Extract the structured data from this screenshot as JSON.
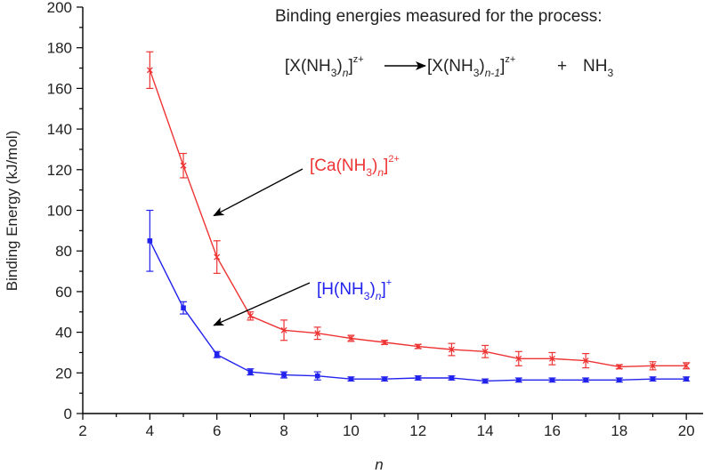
{
  "chart_data": {
    "type": "line",
    "ylabel": "Binding Energy (kJ/mol)",
    "xlabel": "n",
    "xlim": [
      2,
      20.5
    ],
    "ylim": [
      0,
      200
    ],
    "x_ticks": [
      "2",
      "4",
      "6",
      "8",
      "10",
      "12",
      "14",
      "16",
      "18",
      "20"
    ],
    "y_ticks": [
      "0",
      "20",
      "40",
      "60",
      "80",
      "100",
      "120",
      "140",
      "160",
      "180",
      "200"
    ],
    "series": [
      {
        "name": "[Ca(NH3)n]2+",
        "color": "#ee3333",
        "marker": "x",
        "x": [
          4,
          5,
          6,
          7,
          8,
          9,
          10,
          11,
          12,
          13,
          14,
          15,
          16,
          17,
          18,
          19,
          20
        ],
        "values": [
          169,
          122,
          77,
          48,
          41,
          39.5,
          37,
          35,
          33,
          31.5,
          30.5,
          27,
          27,
          26,
          23,
          23.5,
          23.5
        ],
        "errors": [
          9,
          6,
          8,
          2,
          5,
          3,
          1.5,
          1,
          1,
          3,
          3,
          3.5,
          3,
          3.5,
          1,
          2,
          1.5
        ]
      },
      {
        "name": "[H(NH3)n]+",
        "color": "#2222ee",
        "marker": "square",
        "x": [
          4,
          5,
          6,
          7,
          8,
          9,
          10,
          11,
          12,
          13,
          14,
          15,
          16,
          17,
          18,
          19,
          20
        ],
        "values": [
          85,
          52,
          29,
          20.5,
          19,
          18.5,
          17,
          17,
          17.5,
          17.5,
          16,
          16.5,
          16.5,
          16.5,
          16.5,
          17,
          17
        ],
        "errors": [
          15,
          3,
          1.5,
          1.5,
          1.5,
          2,
          1,
          1,
          1,
          1,
          1,
          1,
          1,
          1,
          1,
          1,
          1
        ]
      }
    ],
    "annotations": {
      "title": "Binding energies measured for the process:",
      "ca_label": {
        "main": "[Ca(NH",
        "sub3": "3",
        "mid": ")",
        "sub_n": "n",
        "close": "]",
        "sup": "2+",
        "arrow_to": [
          5.8,
          100
        ]
      },
      "h_label": {
        "main": "[H(NH",
        "sub3": "3",
        "mid": ")",
        "sub_n": "n",
        "close": "]",
        "sup": "+",
        "arrow_to": [
          5.8,
          46
        ]
      },
      "equation": {
        "left": "[X(NH",
        "left_sub3": "3",
        "left_mid": ")",
        "left_subn": "n",
        "left_close": "]",
        "left_sup": "z+",
        "right": "[X(NH",
        "right_sub3": "3",
        "right_mid": ")",
        "right_subn": "n-1",
        "right_close": "]",
        "right_sup": "z+",
        "plus": "+",
        "product": "NH",
        "product_sub": "3"
      }
    }
  }
}
